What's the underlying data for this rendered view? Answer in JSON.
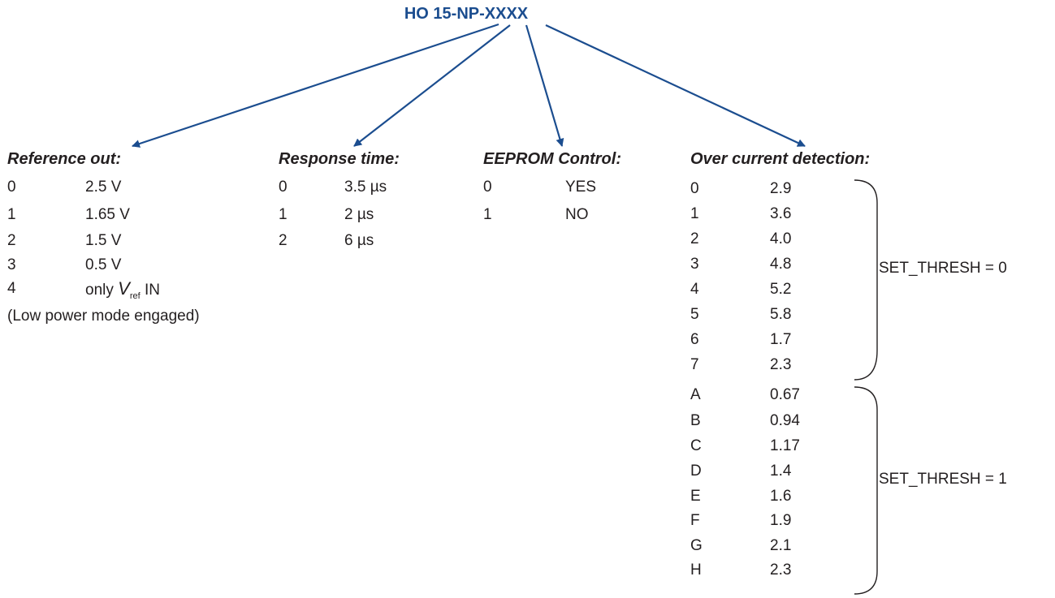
{
  "title": "HO 15-NP-XXXX",
  "colors": {
    "accent": "#1b4d8f",
    "text": "#231f20"
  },
  "sections": {
    "reference": {
      "heading": "Reference out:",
      "rows": [
        {
          "code": "0",
          "value": "2.5 V"
        },
        {
          "code": "1",
          "value": "1.65 V"
        },
        {
          "code": "2",
          "value": "1.5 V"
        },
        {
          "code": "3",
          "value": "0.5 V"
        }
      ],
      "row4": {
        "code": "4",
        "pre": "only ",
        "v": "V",
        "sub": "ref",
        "post": " IN"
      },
      "note": "(Low power mode engaged)"
    },
    "response": {
      "heading": "Response time:",
      "rows": [
        {
          "code": "0",
          "value": "3.5 µs"
        },
        {
          "code": "1",
          "value": "2 µs"
        },
        {
          "code": "2",
          "value": "6 µs"
        }
      ]
    },
    "eeprom": {
      "heading": "EEPROM Control:",
      "rows": [
        {
          "code": "0",
          "value": "YES"
        },
        {
          "code": "1",
          "value": "NO"
        }
      ]
    },
    "overcurrent": {
      "heading": "Over current detection:",
      "rows": [
        {
          "code": "0",
          "value": "2.9"
        },
        {
          "code": "1",
          "value": "3.6"
        },
        {
          "code": "2",
          "value": "4.0"
        },
        {
          "code": "3",
          "value": "4.8"
        },
        {
          "code": "4",
          "value": "5.2"
        },
        {
          "code": "5",
          "value": "5.8"
        },
        {
          "code": "6",
          "value": "1.7"
        },
        {
          "code": "7",
          "value": "2.3"
        },
        {
          "code": "A",
          "value": "0.67"
        },
        {
          "code": "B",
          "value": "0.94"
        },
        {
          "code": "C",
          "value": "1.17"
        },
        {
          "code": "D",
          "value": "1.4"
        },
        {
          "code": "E",
          "value": "1.6"
        },
        {
          "code": "F",
          "value": "1.9"
        },
        {
          "code": "G",
          "value": "2.1"
        },
        {
          "code": "H",
          "value": "2.3"
        }
      ],
      "bracket0": "SET_THRESH = 0",
      "bracket1": "SET_THRESH = 1"
    }
  }
}
